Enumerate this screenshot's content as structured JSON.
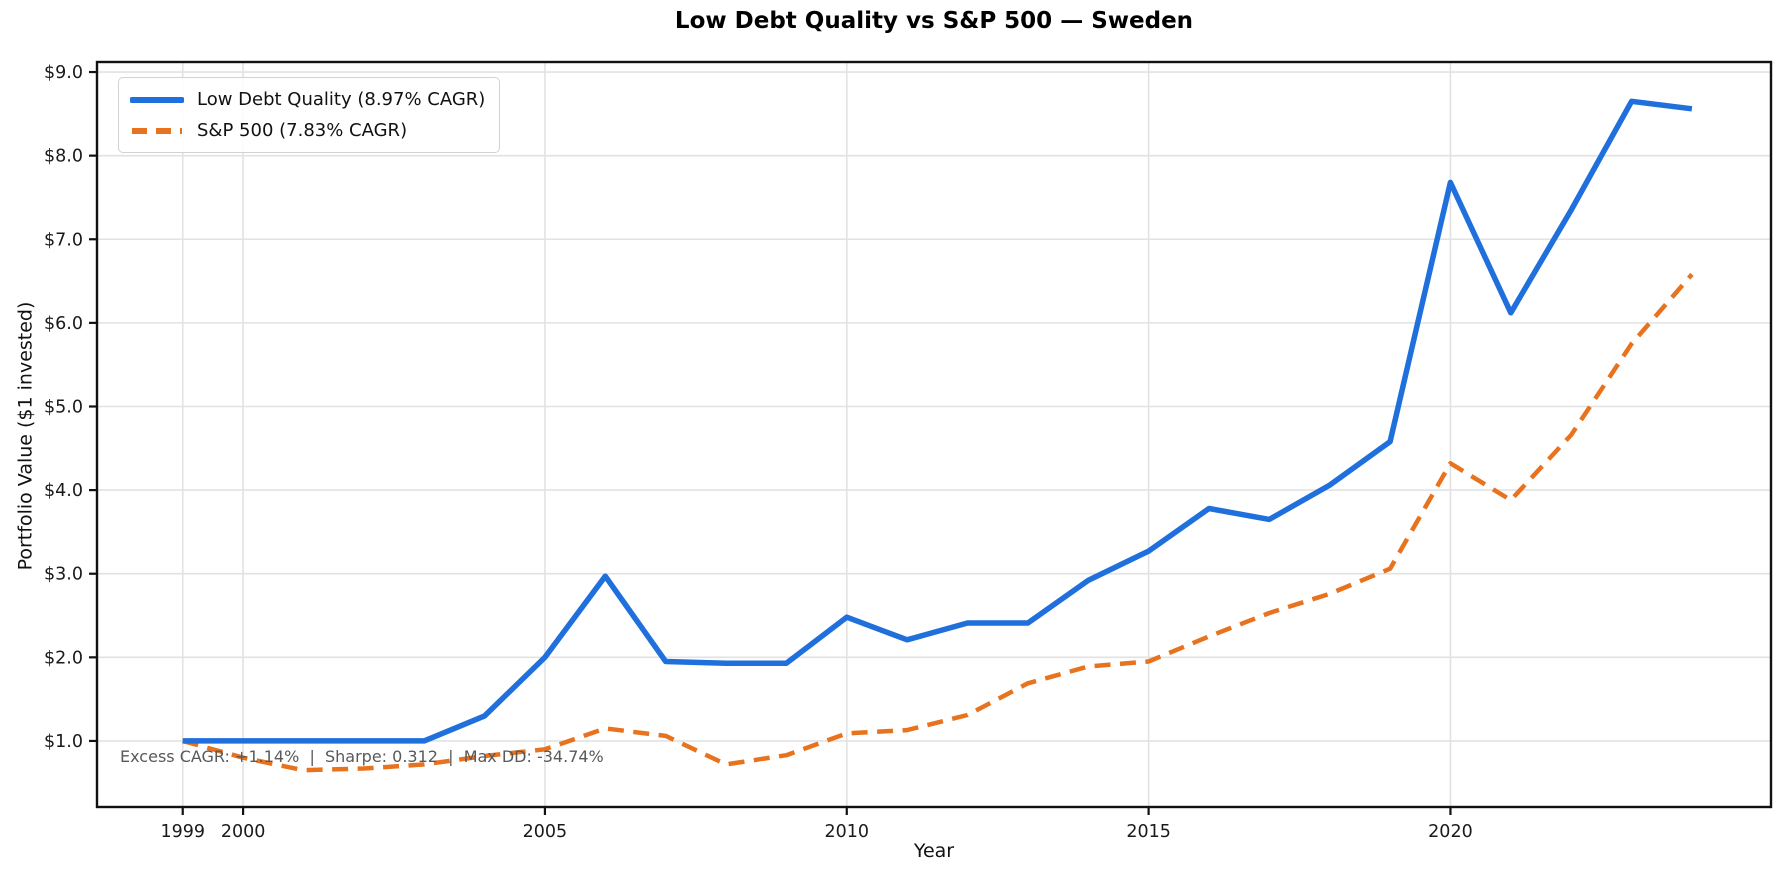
{
  "figure": {
    "background": "#ffffff",
    "title": "Low Debt Quality vs S&P 500 — Sweden",
    "annotation": "Excess CAGR: +1.14%  |  Sharpe: 0.312  |  Max DD: -34.74%"
  },
  "colors": {
    "series_blue": "#1f6fdc",
    "series_orange": "#e8731f",
    "grid": "#e2e2e2",
    "spine": "#111111",
    "annotation_text": "#595959",
    "tick_text": "#1a1a1a"
  },
  "chart_data": {
    "type": "line",
    "title": "Low Debt Quality vs S&P 500 — Sweden",
    "xlabel": "Year",
    "ylabel": "Portfolio Value ($1 invested)",
    "annotation": "Excess CAGR: +1.14%  |  Sharpe: 0.312  |  Max DD: -34.74%",
    "grid": true,
    "legend_position": "upper left",
    "xlim": [
      1997.58,
      2025.31
    ],
    "ylim": [
      0.21,
      9.12
    ],
    "x": [
      1999,
      2000,
      2001,
      2002,
      2003,
      2004,
      2005,
      2006,
      2007,
      2008,
      2009,
      2010,
      2011,
      2012,
      2013,
      2014,
      2015,
      2016,
      2017,
      2018,
      2019,
      2020,
      2021,
      2022,
      2023,
      2024
    ],
    "series": [
      {
        "name": "Low Debt Quality (8.97% CAGR)",
        "color": "#1f6fdc",
        "style": "solid",
        "width": 5.5,
        "values": [
          1.0,
          1.0,
          1.0,
          1.0,
          1.0,
          1.3,
          2.0,
          2.97,
          1.95,
          1.93,
          1.93,
          2.48,
          2.21,
          2.41,
          2.41,
          2.92,
          3.27,
          3.78,
          3.65,
          4.06,
          4.58,
          7.68,
          6.12,
          7.35,
          8.65,
          8.56
        ]
      },
      {
        "name": "S&P 500 (7.83% CAGR)",
        "color": "#e8731f",
        "style": "dashed",
        "width": 4.5,
        "values": [
          1.0,
          0.8,
          0.65,
          0.67,
          0.72,
          0.82,
          0.9,
          1.15,
          1.06,
          0.72,
          0.83,
          1.09,
          1.13,
          1.31,
          1.69,
          1.89,
          1.95,
          2.25,
          2.53,
          2.76,
          3.06,
          4.32,
          3.88,
          4.66,
          5.75,
          6.58
        ]
      }
    ],
    "xticks": [
      {
        "value": 1999,
        "label": "1999"
      },
      {
        "value": 2000,
        "label": "2000"
      },
      {
        "value": 2005,
        "label": "2005"
      },
      {
        "value": 2010,
        "label": "2010"
      },
      {
        "value": 2015,
        "label": "2015"
      },
      {
        "value": 2020,
        "label": "2020"
      }
    ],
    "yticks": [
      {
        "value": 1,
        "label": "$1.0"
      },
      {
        "value": 2,
        "label": "$2.0"
      },
      {
        "value": 3,
        "label": "$3.0"
      },
      {
        "value": 4,
        "label": "$4.0"
      },
      {
        "value": 5,
        "label": "$5.0"
      },
      {
        "value": 6,
        "label": "$6.0"
      },
      {
        "value": 7,
        "label": "$7.0"
      },
      {
        "value": 8,
        "label": "$8.0"
      },
      {
        "value": 9,
        "label": "$9.0"
      }
    ]
  }
}
